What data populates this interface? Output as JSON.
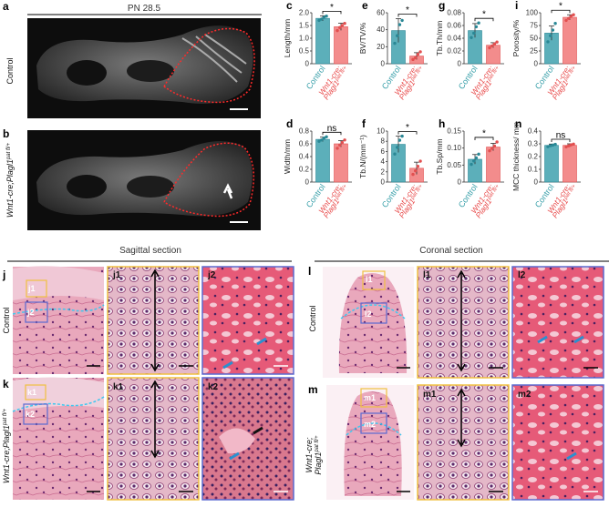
{
  "figure": {
    "header_pn": "PN 28.5",
    "row_labels": {
      "control": "Control",
      "mutant": "Wnt1-cre;Plagl1",
      "mutant_sup": "pat fl/+"
    },
    "mutant_tick_line1": "Wnt1-cre;",
    "mutant_tick_line2": "Plagl1",
    "mutant_tick_sup": "pat fl/+",
    "control_tick": "Control",
    "sections": {
      "sagittal": "Sagittal section",
      "coronal": "Coronal section"
    },
    "control_color": "#3aa0aa",
    "mutant_color": "#f07070"
  },
  "panel_letters": {
    "a": "a",
    "b": "b",
    "c": "c",
    "d": "d",
    "e": "e",
    "f": "f",
    "g": "g",
    "h": "h",
    "i": "i",
    "n": "n",
    "j": "j",
    "j1": "j1",
    "j2": "j2",
    "k": "k",
    "k1": "k1",
    "k2": "k2",
    "l": "l",
    "l1": "l1",
    "l2": "l2",
    "m": "m",
    "m1": "m1",
    "m2": "m2"
  },
  "chart_data": [
    {
      "id": "c",
      "type": "bar",
      "ylabel": "Length/mm",
      "ylim": [
        0,
        2.0
      ],
      "ticks": [
        "0",
        "0.5",
        "1.0",
        "1.5",
        "2.0"
      ],
      "tickvals": [
        0,
        0.5,
        1.0,
        1.5,
        2.0
      ],
      "categories": [
        "Control",
        "Wnt1-cre;Plagl1 pat fl/+"
      ],
      "values": [
        1.78,
        1.45
      ],
      "errors": [
        0.1,
        0.14
      ],
      "points": [
        [
          1.7,
          1.75,
          1.82,
          1.87
        ],
        [
          1.3,
          1.42,
          1.5,
          1.58
        ]
      ],
      "sig": "*"
    },
    {
      "id": "e",
      "type": "bar",
      "ylabel": "BV/TV/%",
      "ylim": [
        0,
        60
      ],
      "ticks": [
        "0",
        "20",
        "40",
        "60"
      ],
      "tickvals": [
        0,
        20,
        40,
        60
      ],
      "categories": [
        "Control",
        "Wnt1-cre;Plagl1 pat fl/+"
      ],
      "values": [
        39,
        9
      ],
      "errors": [
        14,
        4
      ],
      "points": [
        [
          24,
          33,
          46,
          51
        ],
        [
          5,
          7,
          11,
          14
        ]
      ],
      "sig": "*"
    },
    {
      "id": "g",
      "type": "bar",
      "ylabel": "Tb.Th/mm",
      "ylim": [
        0,
        0.08
      ],
      "ticks": [
        "0",
        "0.02",
        "0.04",
        "0.06",
        "0.08"
      ],
      "tickvals": [
        0,
        0.02,
        0.04,
        0.06,
        0.08
      ],
      "categories": [
        "Control",
        "Wnt1-cre;Plagl1 pat fl/+"
      ],
      "values": [
        0.052,
        0.029
      ],
      "errors": [
        0.011,
        0.004
      ],
      "points": [
        [
          0.041,
          0.048,
          0.058,
          0.064
        ],
        [
          0.025,
          0.028,
          0.031,
          0.034
        ]
      ],
      "sig": "*"
    },
    {
      "id": "i",
      "type": "bar",
      "ylabel": "Porosity/%",
      "ylim": [
        0,
        100
      ],
      "ticks": [
        "0",
        "25",
        "50",
        "75",
        "100"
      ],
      "tickvals": [
        0,
        25,
        50,
        75,
        100
      ],
      "categories": [
        "Control",
        "Wnt1-cre;Plagl1 pat fl/+"
      ],
      "values": [
        60,
        91
      ],
      "errors": [
        14,
        5
      ],
      "points": [
        [
          43,
          55,
          66,
          79
        ],
        [
          85,
          89,
          93,
          96
        ]
      ],
      "sig": "*"
    },
    {
      "id": "d",
      "type": "bar",
      "ylabel": "Width/mm",
      "ylim": [
        0,
        0.8
      ],
      "ticks": [
        "0",
        "0.2",
        "0.4",
        "0.6",
        "0.8"
      ],
      "tickvals": [
        0,
        0.2,
        0.4,
        0.6,
        0.8
      ],
      "categories": [
        "Control",
        "Wnt1-cre;Plagl1 pat fl/+"
      ],
      "values": [
        0.67,
        0.6
      ],
      "errors": [
        0.035,
        0.05
      ],
      "points": [
        [
          0.64,
          0.66,
          0.69,
          0.71
        ],
        [
          0.53,
          0.58,
          0.62,
          0.66
        ]
      ],
      "sig": "ns"
    },
    {
      "id": "f",
      "type": "bar",
      "ylabel": "Tb.N/(mm⁻¹)",
      "ylim": [
        0,
        10
      ],
      "ticks": [
        "0",
        "2",
        "4",
        "6",
        "8",
        "10"
      ],
      "tickvals": [
        0,
        2,
        4,
        6,
        8,
        10
      ],
      "categories": [
        "Control",
        "Wnt1-cre;Plagl1 pat fl/+"
      ],
      "values": [
        7.4,
        2.7
      ],
      "errors": [
        1.6,
        1.2
      ],
      "points": [
        [
          5.5,
          6.8,
          8.2,
          9.0
        ],
        [
          1.5,
          2.2,
          3.1,
          4.1
        ]
      ],
      "sig": "*"
    },
    {
      "id": "h",
      "type": "bar",
      "ylabel": "Tb.Sp/mm",
      "ylim": [
        0,
        0.15
      ],
      "ticks": [
        "0",
        "0.05",
        "0.10",
        "0.15"
      ],
      "tickvals": [
        0,
        0.05,
        0.1,
        0.15
      ],
      "categories": [
        "Control",
        "Wnt1-cre;Plagl1 pat fl/+"
      ],
      "values": [
        0.067,
        0.103
      ],
      "errors": [
        0.014,
        0.011
      ],
      "points": [
        [
          0.052,
          0.062,
          0.071,
          0.082
        ],
        [
          0.092,
          0.099,
          0.106,
          0.118
        ]
      ],
      "sig": "*"
    },
    {
      "id": "n",
      "type": "bar",
      "ylabel": "MCC thickness/ mm",
      "ylim": [
        0,
        0.4
      ],
      "ticks": [
        "0",
        "0.1",
        "0.2",
        "0.3",
        "0.4"
      ],
      "tickvals": [
        0,
        0.1,
        0.2,
        0.3,
        0.4
      ],
      "categories": [
        "Control",
        "Wnt1-cre;Plagl1 pat fl/+"
      ],
      "values": [
        0.288,
        0.288
      ],
      "errors": [
        0.01,
        0.012
      ],
      "points": [
        [
          0.278,
          0.285,
          0.29,
          0.296
        ],
        [
          0.276,
          0.284,
          0.292,
          0.298
        ]
      ],
      "sig": "ns"
    }
  ]
}
